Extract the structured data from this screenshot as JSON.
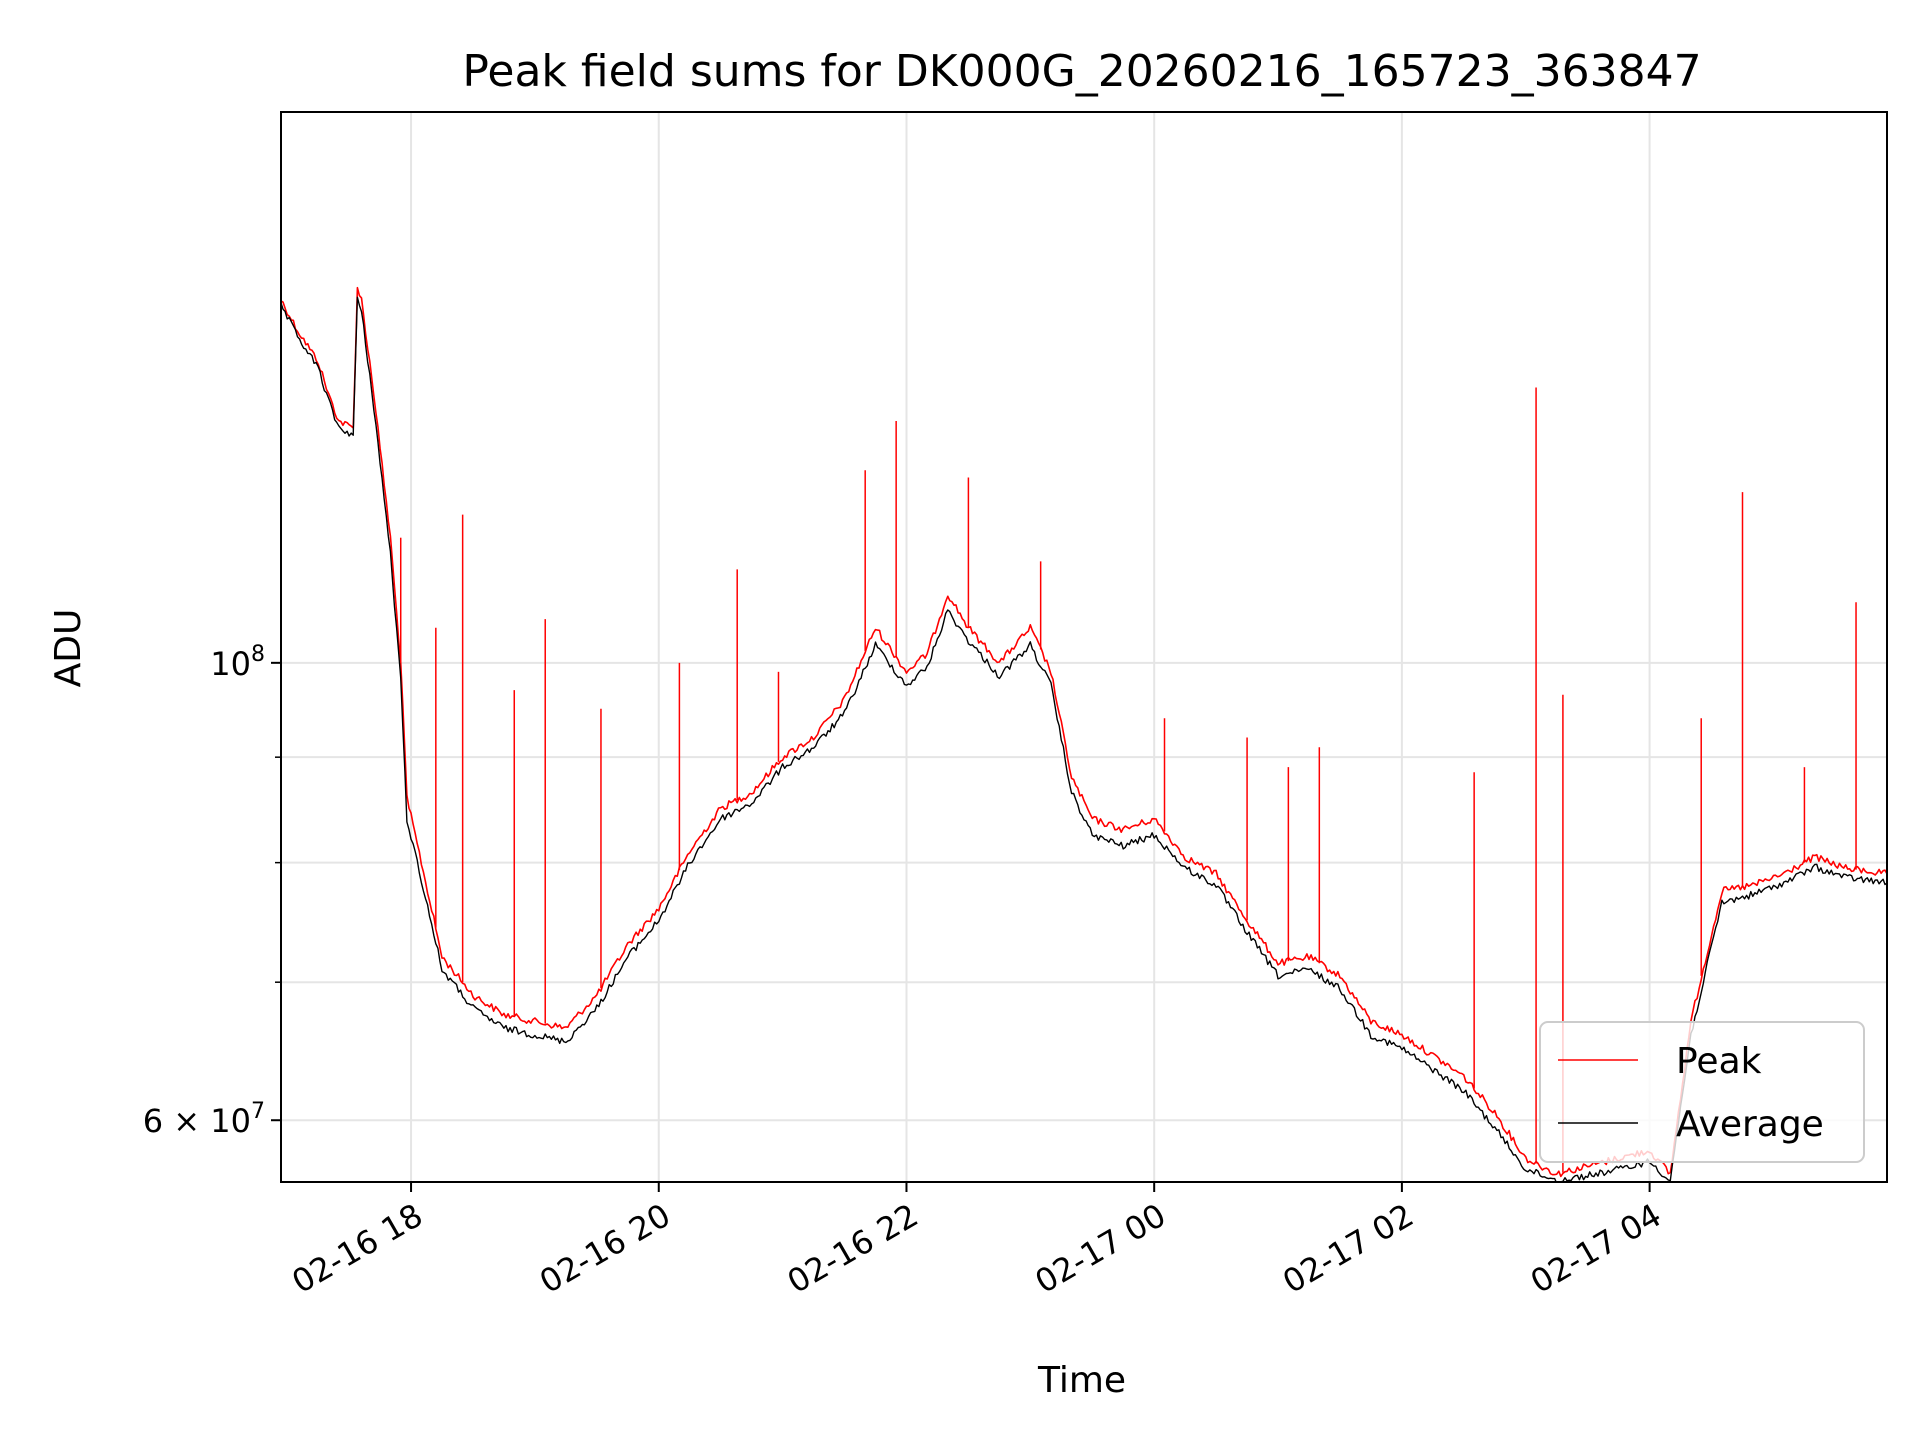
{
  "chart_data": {
    "type": "line",
    "title": "Peak field sums for DK000G_20260216_165723_363847",
    "xlabel": "Time",
    "ylabel": "ADU",
    "yscale": "log",
    "grid": true,
    "legend_placement": "lower-right",
    "xlim": [
      "2026-02-16 16:57",
      "2026-02-17 05:55"
    ],
    "ylim": [
      56000000,
      185000000
    ],
    "x_ticks": [
      "2026-02-16 18:00",
      "2026-02-16 20:00",
      "2026-02-16 22:00",
      "2026-02-17 00:00",
      "2026-02-17 02:00",
      "2026-02-17 04:00"
    ],
    "x_tick_labels": [
      "02-16 18",
      "02-16 20",
      "02-16 22",
      "02-17 00",
      "02-17 02",
      "02-17 04"
    ],
    "y_ticks": [
      {
        "value": 60000000,
        "base": "6 × 10",
        "exp": "7"
      },
      {
        "value": 100000000,
        "base": "10",
        "exp": "8"
      }
    ],
    "y_minor_ticks": [
      70000000,
      80000000,
      90000000
    ],
    "colors": {
      "peak": "#ff0000",
      "average": "#000000",
      "grid": "#e5e5e5"
    },
    "series": [
      {
        "name": "Peak",
        "color": "#ff0000",
        "points": [
          [
            "2026-02-16 16:57",
            150000000
          ],
          [
            "2026-02-16 17:05",
            145000000
          ],
          [
            "2026-02-16 17:15",
            140000000
          ],
          [
            "2026-02-16 17:20",
            135000000
          ],
          [
            "2026-02-16 17:25",
            131000000
          ],
          [
            "2026-02-16 17:32",
            130000000
          ],
          [
            "2026-02-16 17:34",
            152000000
          ],
          [
            "2026-02-16 17:36",
            150000000
          ],
          [
            "2026-02-16 17:42",
            135000000
          ],
          [
            "2026-02-16 17:50",
            115000000
          ],
          [
            "2026-02-16 17:55",
            100000000
          ],
          [
            "2026-02-16 17:58",
            86000000
          ],
          [
            "2026-02-16 18:05",
            80000000
          ],
          [
            "2026-02-16 18:15",
            72000000
          ],
          [
            "2026-02-16 18:30",
            69000000
          ],
          [
            "2026-02-16 18:45",
            67500000
          ],
          [
            "2026-02-16 19:00",
            67000000
          ],
          [
            "2026-02-16 19:15",
            66500000
          ],
          [
            "2026-02-16 19:30",
            69000000
          ],
          [
            "2026-02-16 19:45",
            73000000
          ],
          [
            "2026-02-16 20:00",
            76000000
          ],
          [
            "2026-02-16 20:15",
            81000000
          ],
          [
            "2026-02-16 20:30",
            85000000
          ],
          [
            "2026-02-16 20:45",
            86500000
          ],
          [
            "2026-02-16 21:00",
            90000000
          ],
          [
            "2026-02-16 21:15",
            92000000
          ],
          [
            "2026-02-16 21:30",
            96000000
          ],
          [
            "2026-02-16 21:45",
            104000000
          ],
          [
            "2026-02-16 22:00",
            99000000
          ],
          [
            "2026-02-16 22:10",
            101000000
          ],
          [
            "2026-02-16 22:20",
            108000000
          ],
          [
            "2026-02-16 22:30",
            104000000
          ],
          [
            "2026-02-16 22:45",
            100000000
          ],
          [
            "2026-02-16 23:00",
            104000000
          ],
          [
            "2026-02-16 23:10",
            99000000
          ],
          [
            "2026-02-16 23:20",
            88000000
          ],
          [
            "2026-02-16 23:30",
            84000000
          ],
          [
            "2026-02-16 23:45",
            83000000
          ],
          [
            "2026-02-17 00:00",
            84000000
          ],
          [
            "2026-02-17 00:15",
            80500000
          ],
          [
            "2026-02-17 00:30",
            79000000
          ],
          [
            "2026-02-17 00:45",
            75000000
          ],
          [
            "2026-02-17 01:00",
            71500000
          ],
          [
            "2026-02-17 01:15",
            72000000
          ],
          [
            "2026-02-17 01:30",
            70500000
          ],
          [
            "2026-02-17 01:45",
            67000000
          ],
          [
            "2026-02-17 02:00",
            66000000
          ],
          [
            "2026-02-17 02:15",
            64500000
          ],
          [
            "2026-02-17 02:30",
            63000000
          ],
          [
            "2026-02-17 02:45",
            60500000
          ],
          [
            "2026-02-17 03:00",
            57500000
          ],
          [
            "2026-02-17 03:15",
            56500000
          ],
          [
            "2026-02-17 03:30",
            57000000
          ],
          [
            "2026-02-17 03:45",
            57500000
          ],
          [
            "2026-02-17 04:00",
            58000000
          ],
          [
            "2026-02-17 04:10",
            56500000
          ],
          [
            "2026-02-17 04:20",
            67000000
          ],
          [
            "2026-02-17 04:35",
            77500000
          ],
          [
            "2026-02-17 04:50",
            78000000
          ],
          [
            "2026-02-17 05:05",
            79000000
          ],
          [
            "2026-02-17 05:20",
            80500000
          ],
          [
            "2026-02-17 05:35",
            79500000
          ],
          [
            "2026-02-17 05:55",
            79000000
          ]
        ]
      },
      {
        "name": "Average",
        "color": "#000000",
        "points": [
          [
            "2026-02-16 16:57",
            149000000
          ],
          [
            "2026-02-16 17:05",
            144000000
          ],
          [
            "2026-02-16 17:15",
            139000000
          ],
          [
            "2026-02-16 17:20",
            134000000
          ],
          [
            "2026-02-16 17:25",
            130000000
          ],
          [
            "2026-02-16 17:32",
            129000000
          ],
          [
            "2026-02-16 17:34",
            150000000
          ],
          [
            "2026-02-16 17:36",
            148000000
          ],
          [
            "2026-02-16 17:42",
            133000000
          ],
          [
            "2026-02-16 17:50",
            113000000
          ],
          [
            "2026-02-16 17:55",
            98000000
          ],
          [
            "2026-02-16 17:58",
            84000000
          ],
          [
            "2026-02-16 18:05",
            78500000
          ],
          [
            "2026-02-16 18:15",
            71000000
          ],
          [
            "2026-02-16 18:30",
            68000000
          ],
          [
            "2026-02-16 18:45",
            66500000
          ],
          [
            "2026-02-16 19:00",
            66000000
          ],
          [
            "2026-02-16 19:15",
            65500000
          ],
          [
            "2026-02-16 19:30",
            68000000
          ],
          [
            "2026-02-16 19:45",
            72000000
          ],
          [
            "2026-02-16 20:00",
            75000000
          ],
          [
            "2026-02-16 20:15",
            80000000
          ],
          [
            "2026-02-16 20:30",
            84000000
          ],
          [
            "2026-02-16 20:45",
            85500000
          ],
          [
            "2026-02-16 21:00",
            89000000
          ],
          [
            "2026-02-16 21:15",
            91000000
          ],
          [
            "2026-02-16 21:30",
            94500000
          ],
          [
            "2026-02-16 21:45",
            102000000
          ],
          [
            "2026-02-16 22:00",
            97500000
          ],
          [
            "2026-02-16 22:10",
            99500000
          ],
          [
            "2026-02-16 22:20",
            106000000
          ],
          [
            "2026-02-16 22:30",
            102500000
          ],
          [
            "2026-02-16 22:45",
            98500000
          ],
          [
            "2026-02-16 23:00",
            102000000
          ],
          [
            "2026-02-16 23:10",
            97500000
          ],
          [
            "2026-02-16 23:20",
            86500000
          ],
          [
            "2026-02-16 23:30",
            82500000
          ],
          [
            "2026-02-16 23:45",
            81500000
          ],
          [
            "2026-02-17 00:00",
            82500000
          ],
          [
            "2026-02-17 00:15",
            79500000
          ],
          [
            "2026-02-17 00:30",
            78000000
          ],
          [
            "2026-02-17 00:45",
            74000000
          ],
          [
            "2026-02-17 01:00",
            70500000
          ],
          [
            "2026-02-17 01:15",
            71000000
          ],
          [
            "2026-02-17 01:30",
            69500000
          ],
          [
            "2026-02-17 01:45",
            66000000
          ],
          [
            "2026-02-17 02:00",
            65000000
          ],
          [
            "2026-02-17 02:15",
            63500000
          ],
          [
            "2026-02-17 02:30",
            62000000
          ],
          [
            "2026-02-17 02:45",
            59500000
          ],
          [
            "2026-02-17 03:00",
            56800000
          ],
          [
            "2026-02-17 03:15",
            56100000
          ],
          [
            "2026-02-17 03:30",
            56400000
          ],
          [
            "2026-02-17 03:45",
            56800000
          ],
          [
            "2026-02-17 04:00",
            57300000
          ],
          [
            "2026-02-17 04:10",
            56100000
          ],
          [
            "2026-02-17 04:20",
            66000000
          ],
          [
            "2026-02-17 04:35",
            76500000
          ],
          [
            "2026-02-17 04:50",
            77200000
          ],
          [
            "2026-02-17 05:05",
            78200000
          ],
          [
            "2026-02-17 05:20",
            79600000
          ],
          [
            "2026-02-17 05:35",
            78700000
          ],
          [
            "2026-02-17 05:55",
            78200000
          ]
        ]
      }
    ],
    "spikes": [
      [
        "2026-02-16 17:55",
        115000000
      ],
      [
        "2026-02-16 18:12",
        104000000
      ],
      [
        "2026-02-16 18:25",
        118000000
      ],
      [
        "2026-02-16 18:50",
        97000000
      ],
      [
        "2026-02-16 19:05",
        105000000
      ],
      [
        "2026-02-16 19:32",
        95000000
      ],
      [
        "2026-02-16 20:10",
        100000000
      ],
      [
        "2026-02-16 20:38",
        111000000
      ],
      [
        "2026-02-16 20:58",
        99000000
      ],
      [
        "2026-02-16 21:40",
        124000000
      ],
      [
        "2026-02-16 21:55",
        131000000
      ],
      [
        "2026-02-16 22:30",
        123000000
      ],
      [
        "2026-02-16 23:05",
        112000000
      ],
      [
        "2026-02-17 00:05",
        94000000
      ],
      [
        "2026-02-17 00:45",
        92000000
      ],
      [
        "2026-02-17 01:05",
        89000000
      ],
      [
        "2026-02-17 01:20",
        91000000
      ],
      [
        "2026-02-17 02:35",
        88500000
      ],
      [
        "2026-02-17 03:05",
        136000000
      ],
      [
        "2026-02-17 03:18",
        96500000
      ],
      [
        "2026-02-17 04:25",
        94000000
      ],
      [
        "2026-02-17 04:45",
        121000000
      ],
      [
        "2026-02-17 05:15",
        89000000
      ],
      [
        "2026-02-17 05:40",
        107000000
      ]
    ]
  }
}
